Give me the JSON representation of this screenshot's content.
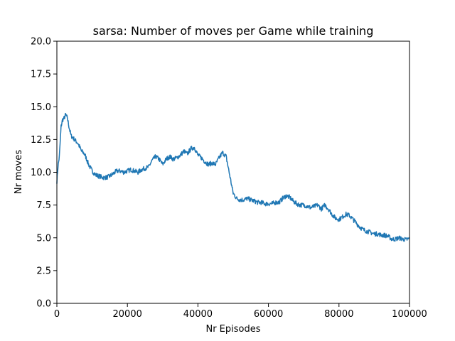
{
  "chart_data": {
    "type": "line",
    "title": "sarsa: Number of moves per Game while training",
    "xlabel": "Nr Episodes",
    "ylabel": "Nr moves",
    "xlim": [
      0,
      100000
    ],
    "ylim": [
      0,
      20
    ],
    "xticks": [
      0,
      20000,
      40000,
      60000,
      80000,
      100000
    ],
    "xtick_labels": [
      "0",
      "20000",
      "40000",
      "60000",
      "80000",
      "100000"
    ],
    "yticks": [
      0,
      2.5,
      5,
      7.5,
      10,
      12.5,
      15,
      17.5,
      20
    ],
    "ytick_labels": [
      "0.0",
      "2.5",
      "5.0",
      "7.5",
      "10.0",
      "12.5",
      "15.0",
      "17.5",
      "20.0"
    ],
    "grid": false,
    "legend": "none",
    "series": [
      {
        "color": "#1f77b4",
        "x": [
          0,
          300,
          700,
          1200,
          1600,
          2000,
          2500,
          3000,
          3500,
          4000,
          5000,
          6000,
          7000,
          7500,
          8000,
          9000,
          10000,
          11000,
          12000,
          13000,
          14000,
          15000,
          16000,
          17000,
          18000,
          19000,
          20000,
          21000,
          22000,
          23000,
          24000,
          25000,
          26000,
          27000,
          28000,
          29000,
          30000,
          31000,
          32000,
          33000,
          34000,
          35000,
          36000,
          37000,
          38000,
          39000,
          40000,
          41000,
          42000,
          43000,
          44000,
          45000,
          46000,
          47000,
          48000,
          49000,
          50000,
          51000,
          52000,
          53000,
          54000,
          55000,
          56000,
          57000,
          58000,
          59000,
          60000,
          61000,
          62000,
          63000,
          64000,
          65000,
          66000,
          67000,
          68000,
          69000,
          70000,
          71000,
          72000,
          73000,
          74000,
          75000,
          76000,
          77000,
          78000,
          79000,
          80000,
          81000,
          82000,
          83000,
          84000,
          85000,
          86000,
          87000,
          88000,
          89000,
          90000,
          91000,
          92000,
          93000,
          94000,
          95000,
          96000,
          97000,
          98000,
          99000,
          100000
        ],
        "y": [
          9.3,
          10.4,
          11.2,
          13.5,
          14.0,
          14.1,
          14.4,
          14.1,
          13.4,
          12.8,
          12.5,
          12.2,
          11.6,
          11.5,
          11.3,
          10.6,
          10.1,
          9.8,
          9.7,
          9.6,
          9.6,
          9.7,
          9.9,
          10.1,
          10.1,
          10.0,
          10.1,
          10.2,
          10.1,
          10.0,
          10.2,
          10.3,
          10.4,
          10.9,
          11.2,
          11.0,
          10.6,
          11.0,
          11.2,
          11.0,
          11.1,
          11.3,
          11.6,
          11.4,
          11.8,
          11.9,
          11.3,
          11.1,
          10.8,
          10.6,
          10.7,
          10.6,
          11.1,
          11.5,
          11.2,
          9.8,
          8.4,
          8.0,
          7.9,
          7.9,
          8.0,
          7.9,
          7.8,
          7.7,
          7.7,
          7.6,
          7.6,
          7.6,
          7.7,
          7.7,
          8.0,
          8.2,
          8.1,
          7.8,
          7.6,
          7.5,
          7.5,
          7.4,
          7.3,
          7.4,
          7.5,
          7.2,
          7.5,
          7.2,
          6.8,
          6.5,
          6.4,
          6.6,
          6.8,
          6.7,
          6.4,
          6.1,
          5.8,
          5.6,
          5.5,
          5.4,
          5.3,
          5.3,
          5.2,
          5.2,
          5.1,
          4.9,
          4.9,
          5.0,
          4.9,
          4.85,
          4.95
        ]
      }
    ]
  }
}
